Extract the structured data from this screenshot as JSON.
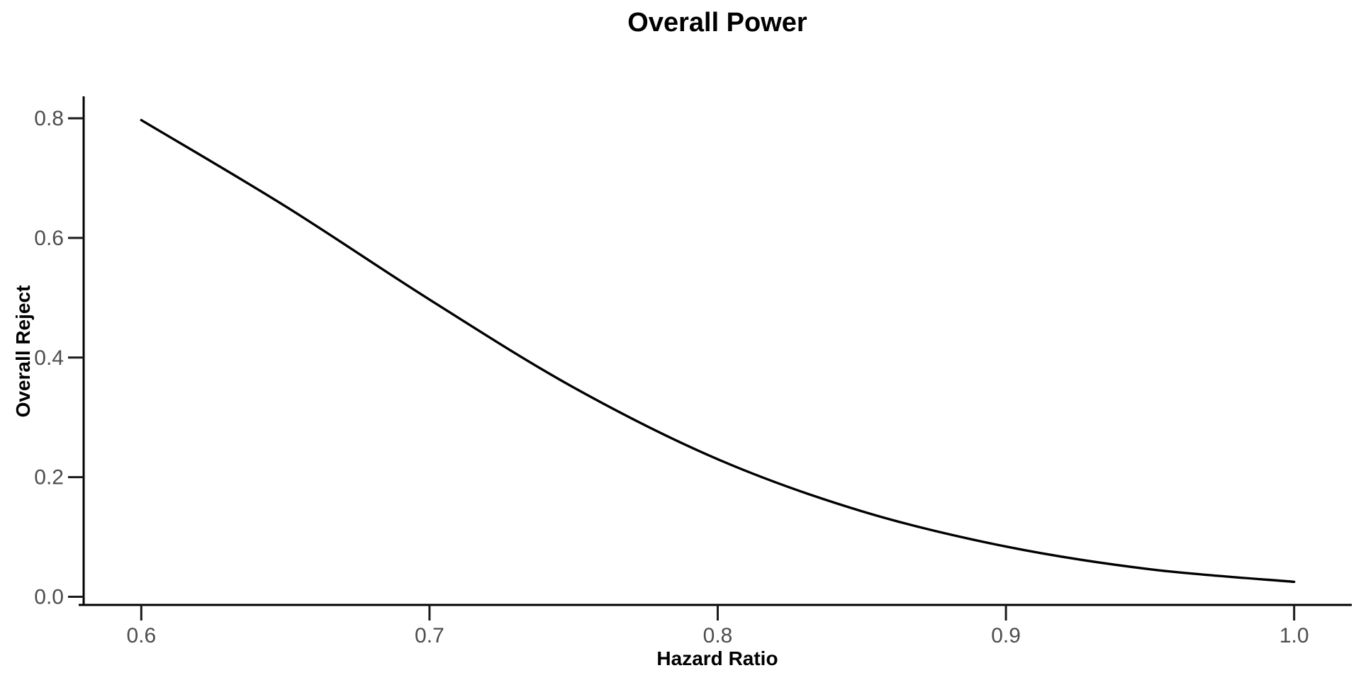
{
  "chart_data": {
    "type": "line",
    "title": "Overall Power",
    "xlabel": "Hazard Ratio",
    "ylabel": "Overall Reject",
    "x": [
      0.6,
      0.65,
      0.7,
      0.75,
      0.8,
      0.85,
      0.9,
      0.95,
      1.0
    ],
    "y": [
      0.797,
      0.653,
      0.497,
      0.35,
      0.23,
      0.143,
      0.084,
      0.046,
      0.025
    ],
    "series": [
      {
        "name": "Overall Power",
        "values": [
          0.797,
          0.653,
          0.497,
          0.35,
          0.23,
          0.143,
          0.084,
          0.046,
          0.025
        ]
      }
    ],
    "x_tick_labels": [
      "0.6",
      "0.7",
      "0.8",
      "0.9",
      "1.0"
    ],
    "y_tick_labels": [
      "0.0",
      "0.2",
      "0.4",
      "0.6",
      "0.8"
    ],
    "xlim": [
      0.58,
      1.02
    ],
    "ylim": [
      -0.0136,
      0.8356
    ],
    "grid": false,
    "legend": "none"
  },
  "colors": {
    "background": "#ffffff",
    "curve": "#000000",
    "axis_line": "#000000",
    "tick_mark": "#1a1a1a",
    "tick_text": "#4d4d4d",
    "title_text": "#000000"
  }
}
